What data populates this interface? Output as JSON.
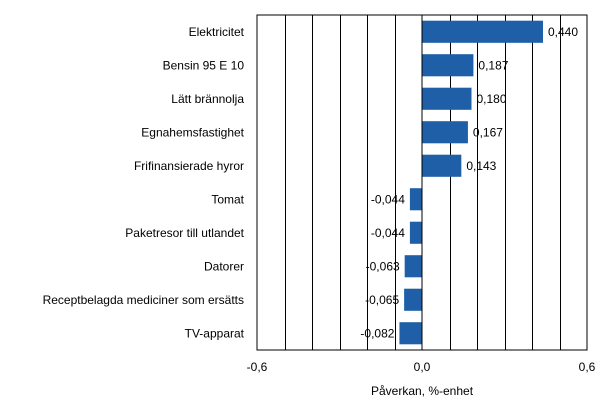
{
  "chart_data": {
    "type": "bar",
    "orientation": "horizontal",
    "categories": [
      "Elektricitet",
      "Bensin 95 E 10",
      "Lätt brännolja",
      "Egnahemsfastighet",
      "Frifinansierade hyror",
      "Tomat",
      "Paketresor till utlandet",
      "Datorer",
      "Receptbelagda mediciner som ersätts",
      "TV-apparat"
    ],
    "values": [
      0.44,
      0.187,
      0.18,
      0.167,
      0.143,
      -0.044,
      -0.044,
      -0.063,
      -0.065,
      -0.082
    ],
    "value_labels": [
      "0,440",
      "0,187",
      "0,180",
      "0,167",
      "0,143",
      "-0,044",
      "-0,044",
      "-0,063",
      "-0,065",
      "-0,082"
    ],
    "xlabel": "Påverkan, %-enhet",
    "xlim": [
      -0.6,
      0.6
    ],
    "xticks": [
      -0.6,
      0.0,
      0.6
    ],
    "xtick_labels": [
      "-0,6",
      "0,0",
      "0,6"
    ],
    "vertical_grid": true,
    "grid_step": 0.1,
    "bar_color": "#1f5fa8",
    "grid_color": "#000000"
  }
}
